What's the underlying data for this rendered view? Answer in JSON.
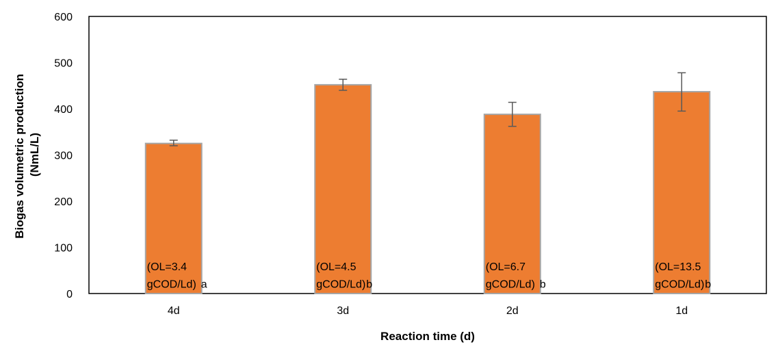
{
  "chart_data": {
    "type": "bar",
    "xlabel": "Reaction time (d)",
    "ylabel": "Biogas volumetric production (NmL/L)",
    "ylabel_lines": [
      "Biogas volumetric production",
      "(NmL/L)"
    ],
    "ylim": [
      0,
      600
    ],
    "yticks": [
      0,
      100,
      200,
      300,
      400,
      500,
      600
    ],
    "grid": false,
    "categories": [
      "4d",
      "3d",
      "2d",
      "1d"
    ],
    "values": [
      325,
      452,
      388,
      437
    ],
    "error_low": [
      320,
      440,
      362,
      395
    ],
    "error_high": [
      332,
      464,
      414,
      478
    ],
    "annotations": [
      {
        "line1": "(OL=3.4",
        "line2": "gCOD/Ld)",
        "letter": "a"
      },
      {
        "line1": "(OL=4.5",
        "line2": "gCOD/Ld)",
        "letter": "b"
      },
      {
        "line1": "(OL=6.7",
        "line2": "gCOD/Ld)",
        "letter": "b"
      },
      {
        "line1": "(OL=13.5",
        "line2": "gCOD/Ld)",
        "letter": "b"
      }
    ],
    "colors": {
      "bar_fill": "#ED7D31",
      "bar_stroke": "#A5A5A5",
      "error_bar": "#595959",
      "axis": "#000000"
    }
  }
}
